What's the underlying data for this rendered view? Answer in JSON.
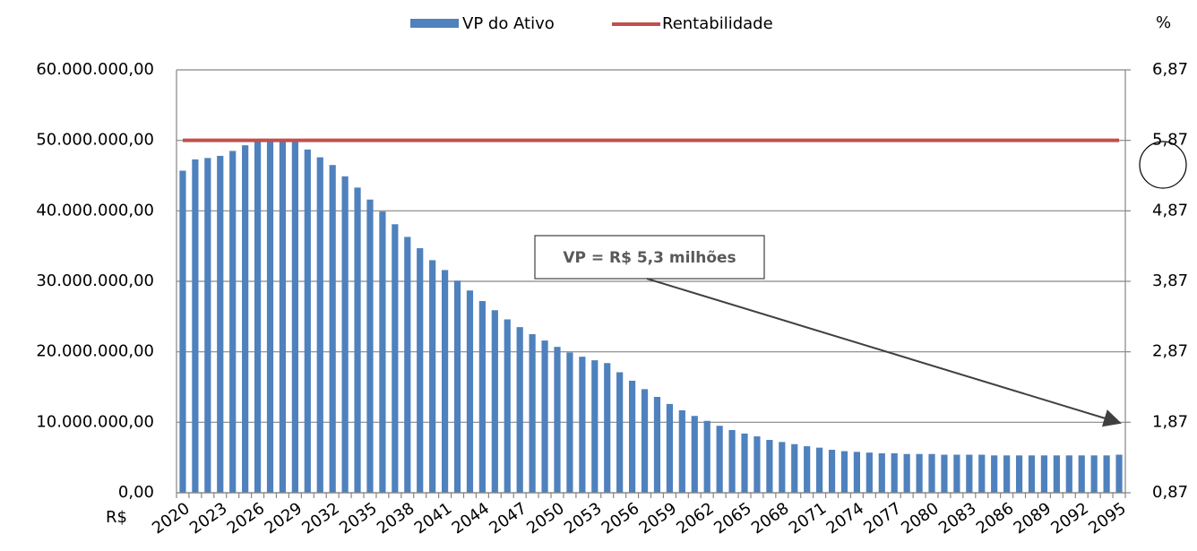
{
  "chart_data": {
    "type": "bar-line",
    "categories": [
      "2020",
      null,
      null,
      "2023",
      null,
      null,
      "2026",
      null,
      null,
      "2029",
      null,
      null,
      "2032",
      null,
      null,
      "2035",
      null,
      null,
      "2038",
      null,
      null,
      "2041",
      null,
      null,
      "2044",
      null,
      null,
      "2047",
      null,
      null,
      "2050",
      null,
      null,
      "2053",
      null,
      null,
      "2056",
      null,
      null,
      "2059",
      null,
      null,
      "2062",
      null,
      null,
      "2065",
      null,
      null,
      "2068",
      null,
      null,
      "2071",
      null,
      null,
      "2074",
      null,
      null,
      "2077",
      null,
      null,
      "2080",
      null,
      null,
      "2083",
      null,
      null,
      "2086",
      null,
      null,
      "2089",
      null,
      null,
      "2092",
      null,
      null,
      "2095"
    ],
    "series": [
      {
        "name": "VP do Ativo",
        "color": "#4f81bd",
        "values": [
          45700000,
          47300000,
          47500000,
          47800000,
          48500000,
          49300000,
          50000000,
          50000000,
          50000000,
          49800000,
          48700000,
          47600000,
          46500000,
          44900000,
          43300000,
          41600000,
          39900000,
          38100000,
          36300000,
          34700000,
          33000000,
          31600000,
          30100000,
          28700000,
          27200000,
          25900000,
          24600000,
          23500000,
          22500000,
          21600000,
          20700000,
          19900000,
          19300000,
          18800000,
          18400000,
          17100000,
          15900000,
          14700000,
          13600000,
          12600000,
          11700000,
          10900000,
          10200000,
          9500000,
          8900000,
          8400000,
          8000000,
          7500000,
          7200000,
          6900000,
          6600000,
          6400000,
          6100000,
          5900000,
          5800000,
          5700000,
          5600000,
          5600000,
          5500000,
          5500000,
          5500000,
          5400000,
          5400000,
          5400000,
          5400000,
          5300000,
          5300000,
          5300000,
          5300000,
          5300000,
          5300000,
          5300000,
          5300000,
          5300000,
          5300000,
          5400000
        ]
      },
      {
        "name": "Rentabilidade",
        "color": "#c0504d",
        "axis": "y2",
        "values": [
          5.87,
          5.87,
          5.87,
          5.87,
          5.87,
          5.87,
          5.87,
          5.87,
          5.87,
          5.87,
          5.87,
          5.87,
          5.87,
          5.87,
          5.87,
          5.87,
          5.87,
          5.87,
          5.87,
          5.87,
          5.87,
          5.87,
          5.87,
          5.87,
          5.87,
          5.87,
          5.87,
          5.87,
          5.87,
          5.87,
          5.87,
          5.87,
          5.87,
          5.87,
          5.87,
          5.87,
          5.87,
          5.87,
          5.87,
          5.87,
          5.87,
          5.87,
          5.87,
          5.87,
          5.87,
          5.87,
          5.87,
          5.87,
          5.87,
          5.87,
          5.87,
          5.87,
          5.87,
          5.87,
          5.87,
          5.87,
          5.87,
          5.87,
          5.87,
          5.87,
          5.87,
          5.87,
          5.87,
          5.87,
          5.87,
          5.87,
          5.87,
          5.87,
          5.87,
          5.87,
          5.87,
          5.87,
          5.87,
          5.87,
          5.87,
          5.87
        ]
      }
    ],
    "ylim": [
      0,
      60000000
    ],
    "yticks": [
      {
        "value": 0,
        "label": "0,00"
      },
      {
        "value": 10000000,
        "label": "10.000.000,00"
      },
      {
        "value": 20000000,
        "label": "20.000.000,00"
      },
      {
        "value": 30000000,
        "label": "30.000.000,00"
      },
      {
        "value": 40000000,
        "label": "40.000.000,00"
      },
      {
        "value": 50000000,
        "label": "50.000.000,00"
      },
      {
        "value": 60000000,
        "label": "60.000.000,00"
      }
    ],
    "y2lim": [
      0.87,
      6.87
    ],
    "y2ticks": [
      {
        "value": 0.87,
        "label": "0,87"
      },
      {
        "value": 1.87,
        "label": "1,87"
      },
      {
        "value": 2.87,
        "label": "2,87"
      },
      {
        "value": 3.87,
        "label": "3,87"
      },
      {
        "value": 4.87,
        "label": "4,87"
      },
      {
        "value": 5.87,
        "label": "5,87"
      },
      {
        "value": 6.87,
        "label": "6,87"
      }
    ],
    "y_label": "R$",
    "y2_label": "%",
    "annotation": "VP = R$ 5,3 milhões",
    "grid": true,
    "legend": "top"
  }
}
